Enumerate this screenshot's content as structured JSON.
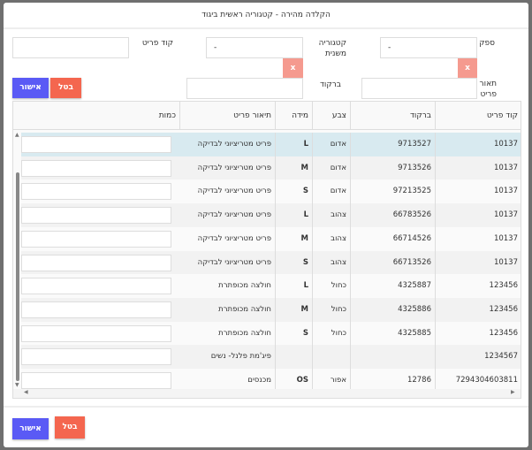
{
  "title": "הקלדה מהירה - קטגוריה ראשית ביגוד",
  "form": {
    "supplier_label": "ספק",
    "supplier_value": "-",
    "subcategory_label": "קטגוריה משנית",
    "subcategory_value": "-",
    "item_code_label": "קוד פריט",
    "item_desc_label": "תאור פריט",
    "barcode_label": "ברקוד",
    "clear_label": "x",
    "confirm_label": "אישור",
    "cancel_label": "בטל"
  },
  "table": {
    "headers": [
      "קוד פריט",
      "ברקוד",
      "צבע",
      "מידה",
      "תיאור פריט",
      "כמות"
    ],
    "rows": [
      [
        "10137",
        "9713527",
        "אדום",
        "L",
        "פריט מטריציוני לבדיקה"
      ],
      [
        "10137",
        "9713526",
        "אדום",
        "M",
        "פריט מטריציוני לבדיקה"
      ],
      [
        "10137",
        "97213525",
        "אדום",
        "S",
        "פריט מטריציוני לבדיקה"
      ],
      [
        "10137",
        "66783526",
        "צהוב",
        "L",
        "פריט מטריציוני לבדיקה"
      ],
      [
        "10137",
        "66714526",
        "צהוב",
        "M",
        "פריט מטריציוני לבדיקה"
      ],
      [
        "10137",
        "66713526",
        "צהוב",
        "S",
        "פריט מטריציוני לבדיקה"
      ],
      [
        "123456",
        "4325887",
        "כחול",
        "L",
        "חולצה מכופתרת"
      ],
      [
        "123456",
        "4325886",
        "כחול",
        "M",
        "חולצה מכופתרת"
      ],
      [
        "123456",
        "4325885",
        "כחול",
        "S",
        "חולצה מכופתרת"
      ],
      [
        "1234567",
        "",
        "",
        "",
        "פיג'מת פלנל- נשים"
      ],
      [
        "7294304603811",
        "12786",
        "אפור",
        "OS",
        "מכנסים"
      ]
    ]
  },
  "footer": {
    "confirm_label": "אישור",
    "cancel_label": "בטל"
  },
  "colors": {
    "confirm": "#5a5af5",
    "cancel": "#f4664f",
    "selected_row": "#d8eaf0"
  }
}
